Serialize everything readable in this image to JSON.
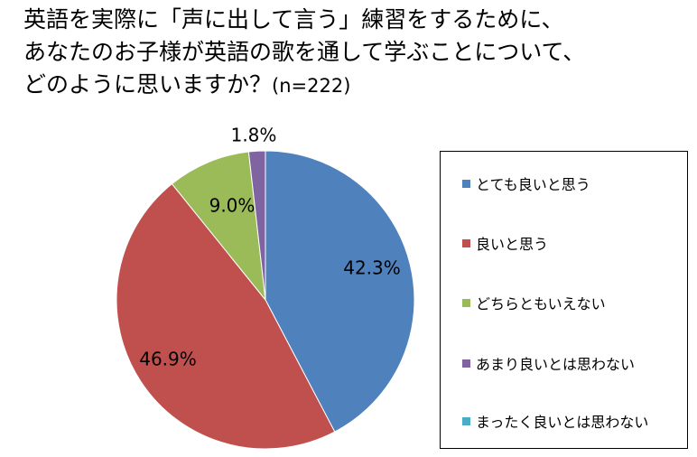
{
  "title": {
    "lines": [
      "英語を実際に「声に出して言う」練習をするために、",
      "あなたのお子様が英語の歌を通して学ぶことについて、",
      "どのように思いますか？"
    ],
    "sample": "(n=222)"
  },
  "chart_data": {
    "type": "pie",
    "title": "英語を実際に「声に出して言う」練習をするために、あなたのお子様が英語の歌を通して学ぶことについて、どのように思いますか？ (n=222)",
    "start_angle_deg": 0,
    "direction": "clockwise",
    "legend_position": "right",
    "slices": [
      {
        "label": "とても良いと思う",
        "value": 42.3,
        "display": "42.3%",
        "color": "#4F81BD"
      },
      {
        "label": "良いと思う",
        "value": 46.9,
        "display": "46.9%",
        "color": "#C0504D"
      },
      {
        "label": "どちらともいえない",
        "value": 9.0,
        "display": "9.0%",
        "color": "#9BBB59"
      },
      {
        "label": "あまり良いとは思わない",
        "value": 1.8,
        "display": "1.8%",
        "color": "#8064A2"
      },
      {
        "label": "まったく良いとは思わない",
        "value": 0.0,
        "display": "",
        "color": "#4BACC6"
      }
    ]
  }
}
